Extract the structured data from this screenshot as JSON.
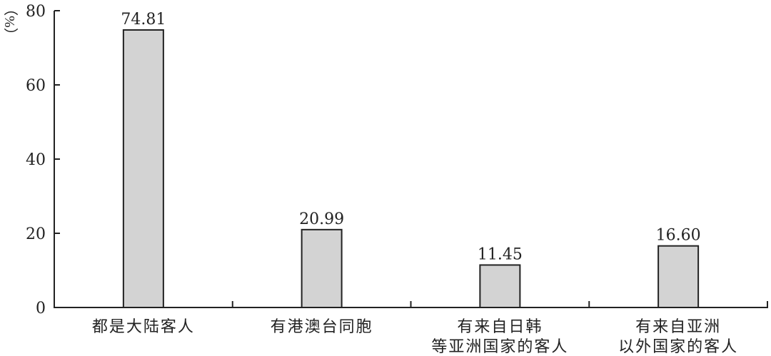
{
  "chart_data": {
    "type": "bar",
    "title": "",
    "xlabel": "",
    "ylabel": "（%）",
    "ylim": [
      0,
      80
    ],
    "yticks": [
      0,
      20,
      40,
      60,
      80
    ],
    "categories": [
      [
        "都是大陆客人"
      ],
      [
        "有港澳台同胞"
      ],
      [
        "有来自日韩",
        "等亚洲国家的客人"
      ],
      [
        "有来自亚洲",
        "以外国家的客人"
      ]
    ],
    "values": [
      74.81,
      20.99,
      11.45,
      16.6
    ],
    "data_labels": [
      "74.81",
      "20.99",
      "11.45",
      "16.60"
    ],
    "grid": false,
    "bar_color": "#d3d3d3",
    "edge_color": "#222222"
  }
}
